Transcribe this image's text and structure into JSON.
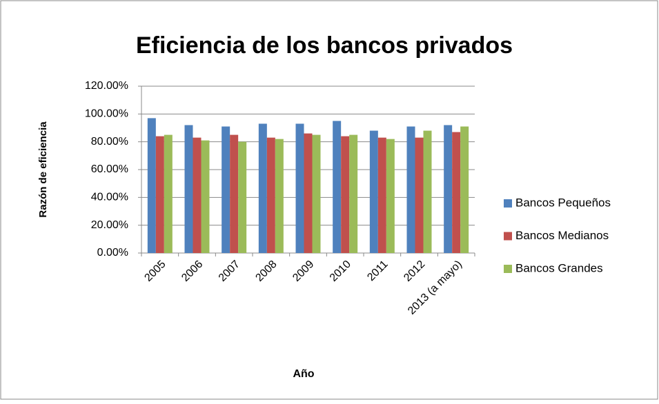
{
  "chart_data": {
    "type": "bar",
    "title": "Eficiencia de los bancos privados",
    "x_label": "Año",
    "y_label": "Razón de eficiencia",
    "categories": [
      "2005",
      "2006",
      "2007",
      "2008",
      "2009",
      "2010",
      "2011",
      "2012",
      "2013 (a mayo)"
    ],
    "series": [
      {
        "name": "Bancos Pequeños",
        "color": "#4f81bd",
        "values": [
          97,
          92,
          91,
          93,
          93,
          95,
          88,
          91,
          92
        ]
      },
      {
        "name": "Bancos Medianos",
        "color": "#c0504d",
        "values": [
          84,
          83,
          85,
          83,
          86,
          84,
          83,
          83,
          87
        ]
      },
      {
        "name": "Bancos Grandes",
        "color": "#9bbb59",
        "values": [
          85,
          81,
          80,
          82,
          85,
          85,
          82,
          88,
          91
        ]
      }
    ],
    "ylim": [
      0,
      120
    ],
    "yticks": [
      {
        "value": 0,
        "label": "0.00%"
      },
      {
        "value": 20,
        "label": "20.00%"
      },
      {
        "value": 40,
        "label": "40.00%"
      },
      {
        "value": 60,
        "label": "60.00%"
      },
      {
        "value": 80,
        "label": "80.00%"
      },
      {
        "value": 100,
        "label": "100.00%"
      },
      {
        "value": 120,
        "label": "120.00%"
      }
    ],
    "grid": true,
    "legend": "right"
  }
}
